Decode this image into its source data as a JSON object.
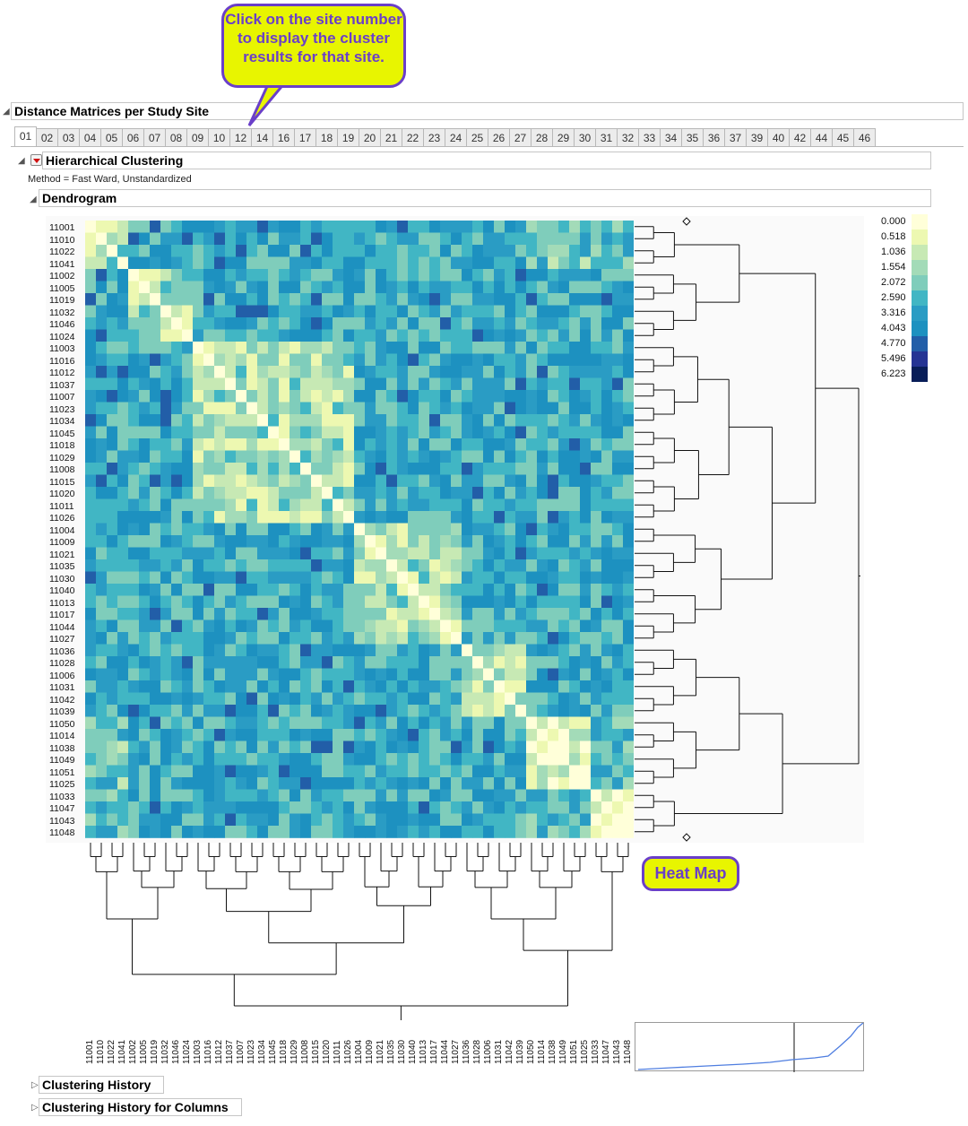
{
  "callout_text": "Click on the site number to display the cluster results for that site.",
  "heatmap_callout": "Heat Map",
  "window": {
    "title": "Distance Matrices per Study Site"
  },
  "tabs": [
    "01",
    "02",
    "03",
    "04",
    "05",
    "06",
    "07",
    "08",
    "09",
    "10",
    "12",
    "14",
    "16",
    "17",
    "18",
    "19",
    "20",
    "21",
    "22",
    "23",
    "24",
    "25",
    "26",
    "27",
    "28",
    "29",
    "30",
    "31",
    "32",
    "33",
    "34",
    "35",
    "36",
    "37",
    "39",
    "40",
    "42",
    "44",
    "45",
    "46"
  ],
  "active_tab": "01",
  "report": {
    "title": "Hierarchical Clustering",
    "method": "Method = Fast Ward,  Unstandardized",
    "dendrogram_title": "Dendrogram"
  },
  "legend": {
    "values": [
      "0.000",
      "0.518",
      "1.036",
      "1.554",
      "2.072",
      "2.590",
      "3.316",
      "4.043",
      "4.770",
      "5.496",
      "6.223"
    ],
    "colors": [
      "#ffffd9",
      "#edf8b1",
      "#c7e9b4",
      "#a3dbb8",
      "#7fcdbb",
      "#41b6c4",
      "#2a9cc4",
      "#1d91c0",
      "#225ea8",
      "#253494",
      "#081d58"
    ]
  },
  "sites": [
    "11001",
    "11010",
    "11022",
    "11041",
    "11002",
    "11005",
    "11019",
    "11032",
    "11046",
    "11024",
    "11003",
    "11016",
    "11012",
    "11037",
    "11007",
    "11023",
    "11034",
    "11045",
    "11018",
    "11029",
    "11008",
    "11015",
    "11020",
    "11011",
    "11026",
    "11004",
    "11009",
    "11021",
    "11035",
    "11030",
    "11040",
    "11013",
    "11017",
    "11044",
    "11027",
    "11036",
    "11028",
    "11006",
    "11031",
    "11042",
    "11039",
    "11050",
    "11014",
    "11038",
    "11049",
    "11051",
    "11025",
    "11033",
    "11047",
    "11043",
    "11048"
  ],
  "clusters": [
    4,
    6,
    15,
    10,
    6,
    6,
    4
  ],
  "bottom_sections": [
    "Clustering History",
    "Clustering History for Columns"
  ]
}
